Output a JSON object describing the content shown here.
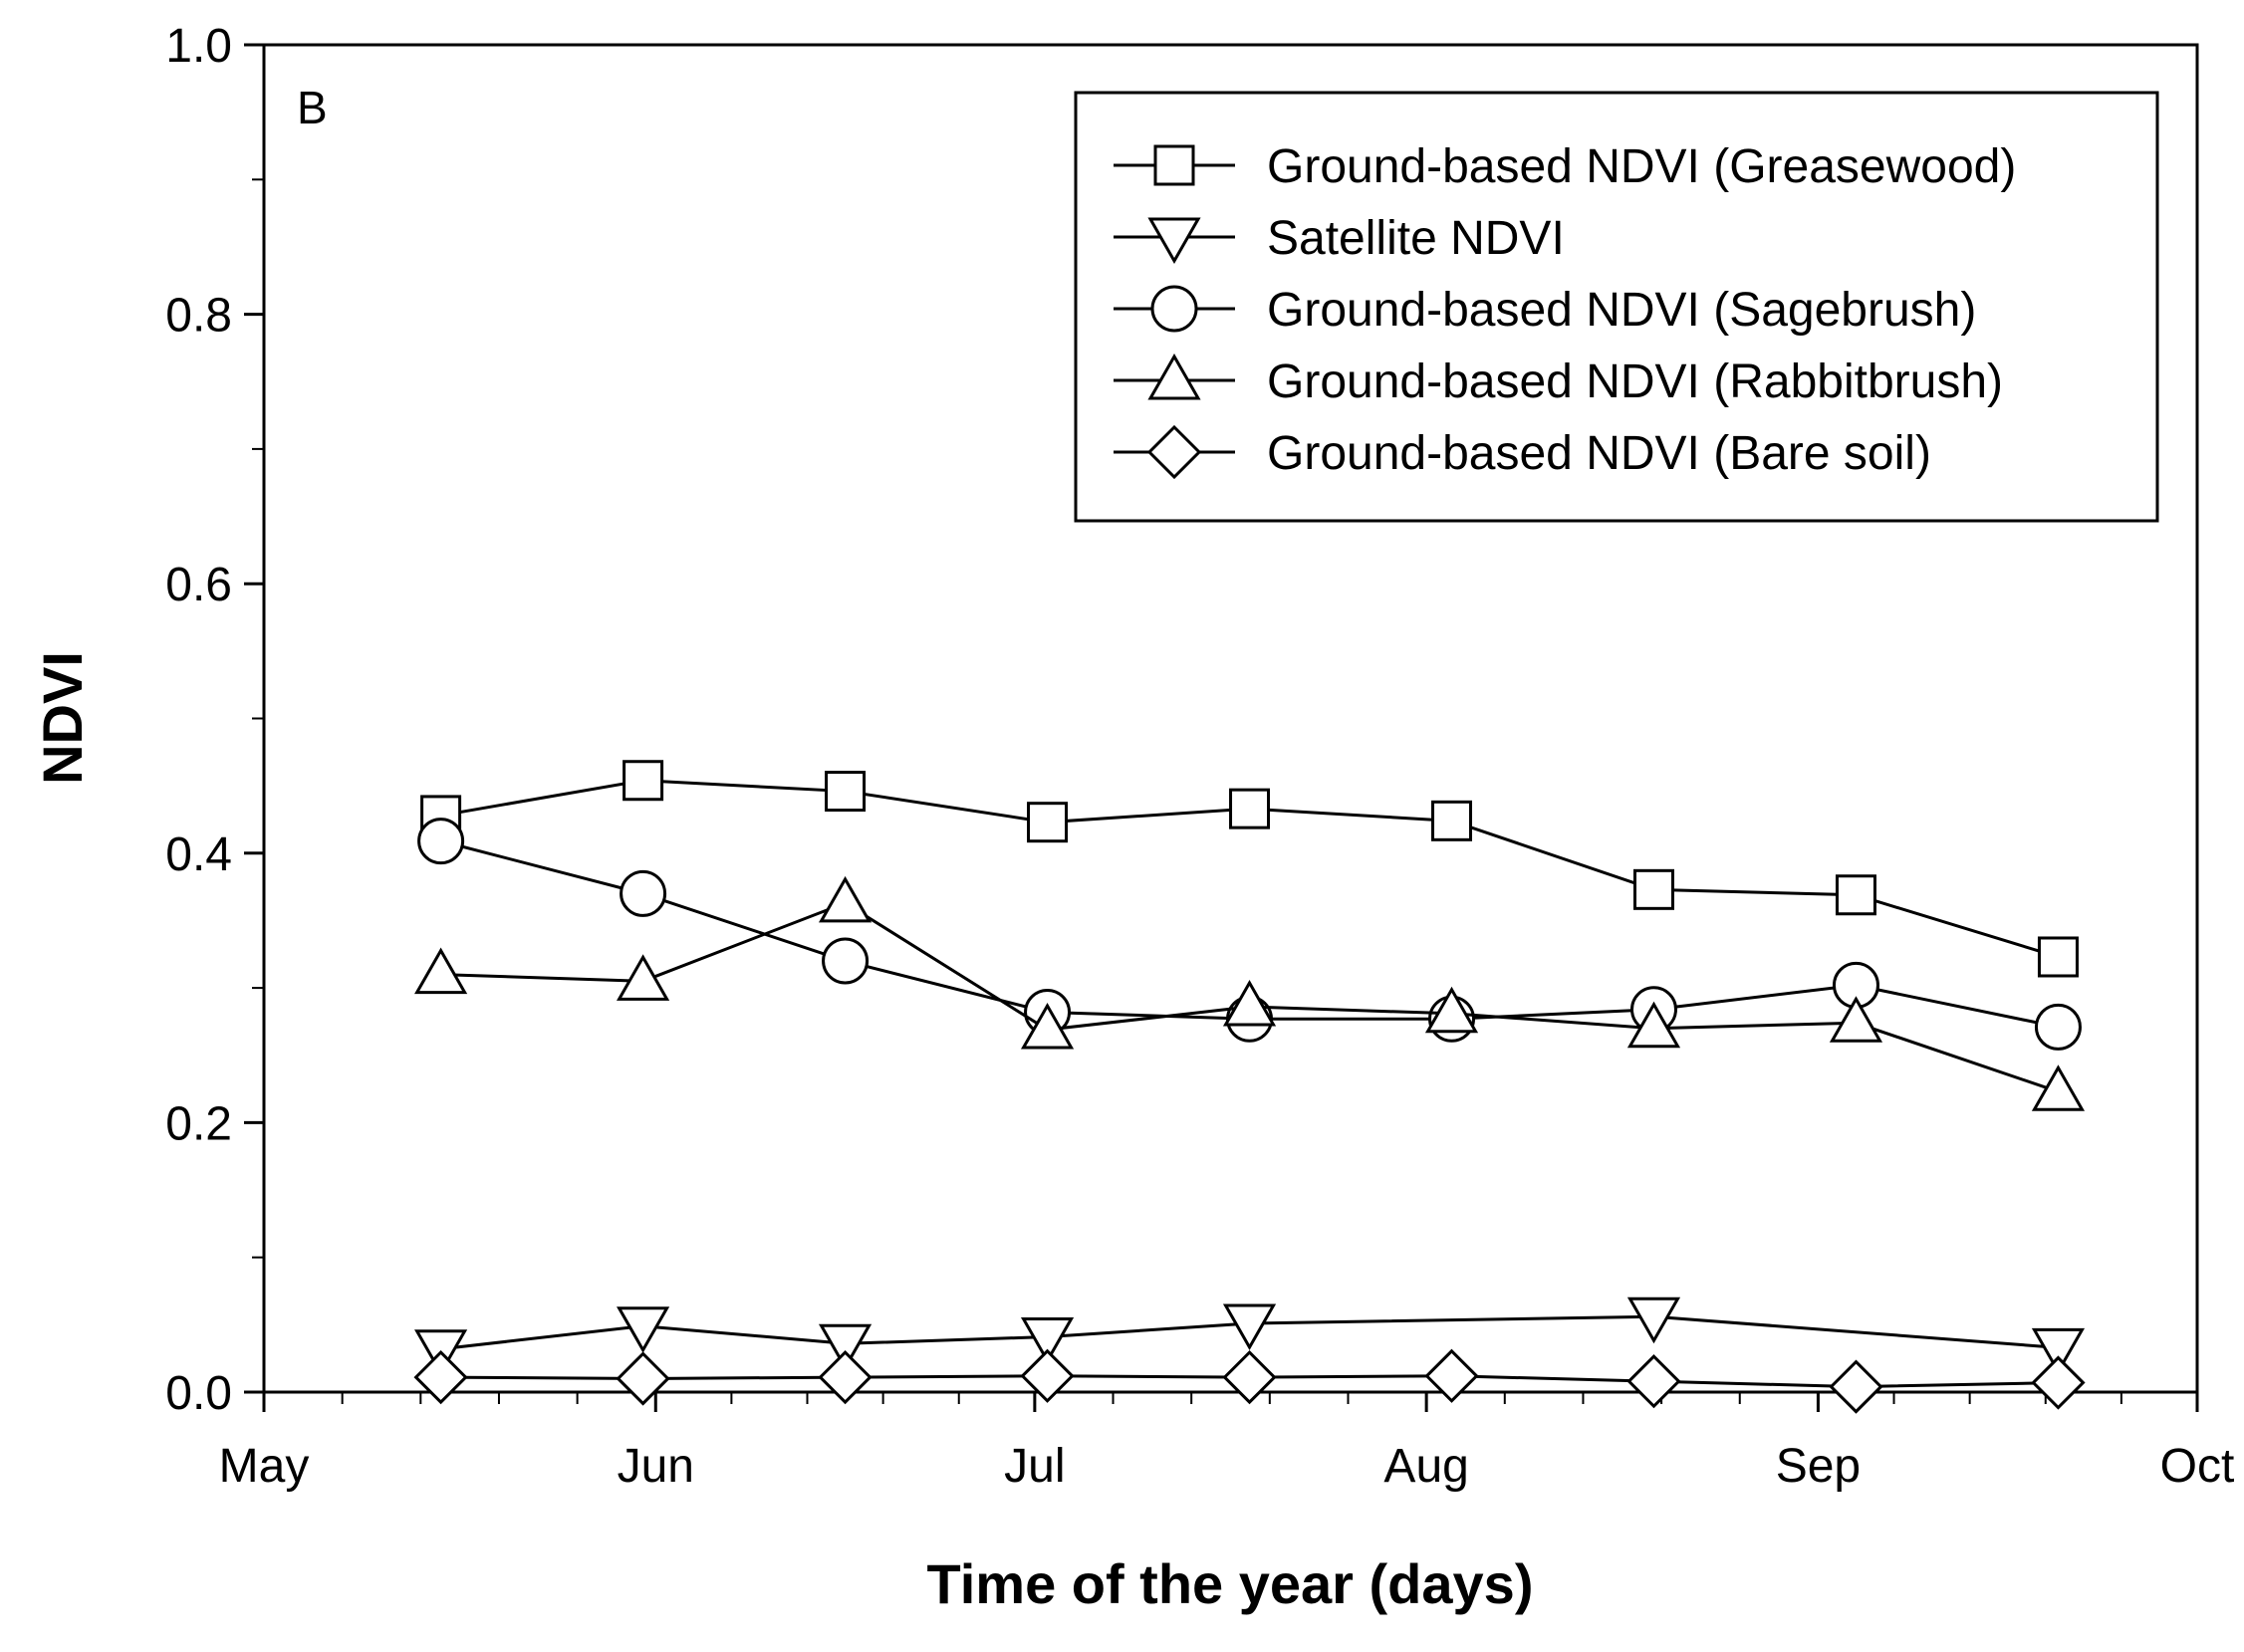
{
  "chart_data": {
    "type": "line",
    "panel_label": "B",
    "title": "",
    "xlabel": "Time of  the year  (days)",
    "ylabel": "NDVI",
    "xlim": [
      121,
      274
    ],
    "ylim": [
      0.0,
      1.0
    ],
    "grid": false,
    "legend_position": "top-right",
    "x_ticks": [
      {
        "value": 121,
        "label": "May"
      },
      {
        "value": 152,
        "label": "Jun"
      },
      {
        "value": 182,
        "label": "Jul"
      },
      {
        "value": 213,
        "label": "Aug"
      },
      {
        "value": 244,
        "label": "Sep"
      },
      {
        "value": 274,
        "label": "Oct"
      }
    ],
    "y_ticks": [
      {
        "value": 0.0,
        "label": "0.0"
      },
      {
        "value": 0.2,
        "label": "0.2"
      },
      {
        "value": 0.4,
        "label": "0.4"
      },
      {
        "value": 0.6,
        "label": "0.6"
      },
      {
        "value": 0.8,
        "label": "0.8"
      },
      {
        "value": 1.0,
        "label": "1.0"
      }
    ],
    "series": [
      {
        "name": "Ground-based NDVI (Greasewood)",
        "marker": "square",
        "points": [
          [
            135,
            0.428
          ],
          [
            151,
            0.454
          ],
          [
            167,
            0.446
          ],
          [
            183,
            0.423
          ],
          [
            199,
            0.433
          ],
          [
            215,
            0.424
          ],
          [
            231,
            0.373
          ],
          [
            247,
            0.369
          ],
          [
            263,
            0.323
          ]
        ]
      },
      {
        "name": "Satellite NDVI",
        "marker": "triangle-down",
        "points": [
          [
            135,
            0.032
          ],
          [
            151,
            0.049
          ],
          [
            167,
            0.036
          ],
          [
            183,
            0.041
          ],
          [
            199,
            0.051
          ],
          [
            231,
            0.056
          ],
          [
            263,
            0.033
          ]
        ]
      },
      {
        "name": "Ground-based NDVI (Sagebrush)",
        "marker": "circle",
        "points": [
          [
            135,
            0.409
          ],
          [
            151,
            0.37
          ],
          [
            167,
            0.32
          ],
          [
            183,
            0.282
          ],
          [
            199,
            0.277
          ],
          [
            215,
            0.277
          ],
          [
            231,
            0.284
          ],
          [
            247,
            0.302
          ],
          [
            263,
            0.271
          ]
        ]
      },
      {
        "name": "Ground-based NDVI (Rabbitbrush)",
        "marker": "triangle-up",
        "points": [
          [
            135,
            0.31
          ],
          [
            151,
            0.305
          ],
          [
            167,
            0.363
          ],
          [
            183,
            0.269
          ],
          [
            199,
            0.286
          ],
          [
            215,
            0.281
          ],
          [
            231,
            0.27
          ],
          [
            247,
            0.274
          ],
          [
            263,
            0.223
          ]
        ]
      },
      {
        "name": "Ground-based NDVI (Bare soil)",
        "marker": "diamond",
        "points": [
          [
            135,
            0.011
          ],
          [
            151,
            0.01
          ],
          [
            167,
            0.011
          ],
          [
            183,
            0.012
          ],
          [
            199,
            0.011
          ],
          [
            215,
            0.012
          ],
          [
            231,
            0.008
          ],
          [
            247,
            0.004
          ],
          [
            263,
            0.007
          ]
        ]
      }
    ]
  }
}
